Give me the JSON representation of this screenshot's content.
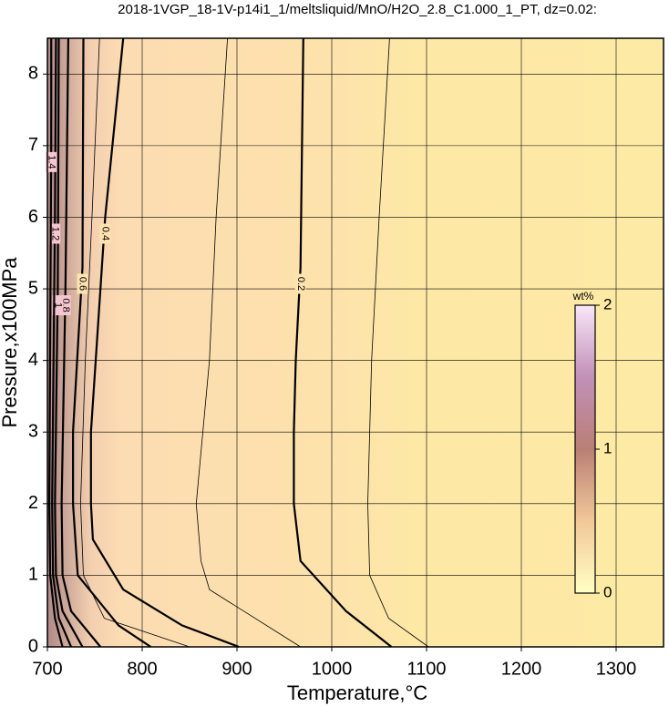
{
  "chart_data": {
    "type": "contour",
    "title": "2018-1VGP_18-1V-p14i1_1/meltsliquid/MnO/H2O_2.8_C1.000_1_PT, dz=0.02:",
    "x_label": "Temperature,°C",
    "y_label": "Pressure,x100MPa",
    "xlim": [
      700,
      1350
    ],
    "ylim": [
      0,
      8.5
    ],
    "xticks": [
      700,
      800,
      900,
      1000,
      1100,
      1200,
      1300
    ],
    "yticks": [
      0,
      1,
      2,
      3,
      4,
      5,
      6,
      7,
      8
    ],
    "grid": true,
    "colorbar": {
      "label": "wt%",
      "lim": [
        0,
        2
      ],
      "ticks": [
        0,
        1,
        2
      ]
    },
    "contours": [
      {
        "level": 0.1,
        "x": [
          1061,
          1050,
          1042,
          1038,
          1040,
          1060,
          1102
        ],
        "y": [
          8.5,
          6,
          4,
          2,
          1,
          0.4,
          0
        ]
      },
      {
        "level": 0.2,
        "x": [
          970,
          967,
          962,
          960,
          960,
          967,
          1015,
          1063
        ],
        "y": [
          8.5,
          5.3,
          4,
          3,
          2,
          1.2,
          0.5,
          0
        ]
      },
      {
        "level": 0.3,
        "x": [
          890,
          878,
          871,
          857,
          862,
          871,
          967
        ],
        "y": [
          8.5,
          6,
          4,
          2,
          1.2,
          0.8,
          0
        ]
      },
      {
        "level": 0.4,
        "x": [
          780,
          761,
          756,
          746,
          746,
          748,
          780,
          842,
          902
        ],
        "y": [
          8.5,
          6,
          5,
          3,
          2,
          1.5,
          0.8,
          0.3,
          0
        ]
      },
      {
        "level": 0.5,
        "x": [
          755,
          747,
          740,
          735,
          738,
          760,
          850
        ],
        "y": [
          8.5,
          6,
          4,
          2,
          1,
          0.4,
          0
        ]
      },
      {
        "level": 0.6,
        "x": [
          738,
          737,
          727,
          727,
          732,
          775,
          809
        ],
        "y": [
          8.5,
          5.3,
          3,
          2,
          1,
          0.3,
          0
        ]
      },
      {
        "level": 0.8,
        "x": [
          722,
          719,
          715,
          716,
          725,
          756
        ],
        "y": [
          8.5,
          5,
          2,
          1,
          0.5,
          0
        ]
      },
      {
        "level": 1,
        "x": [
          712,
          711,
          708,
          709,
          716,
          737
        ],
        "y": [
          8.5,
          5,
          2,
          1,
          0.5,
          0
        ]
      },
      {
        "level": 1.2,
        "x": [
          709,
          708,
          705,
          706,
          712,
          725
        ],
        "y": [
          8.5,
          6,
          2,
          1,
          0.4,
          0
        ]
      },
      {
        "level": 1.4,
        "x": [
          704,
          704,
          702,
          703,
          708,
          716
        ],
        "y": [
          8.5,
          7,
          2,
          1,
          0.4,
          0
        ]
      }
    ]
  }
}
